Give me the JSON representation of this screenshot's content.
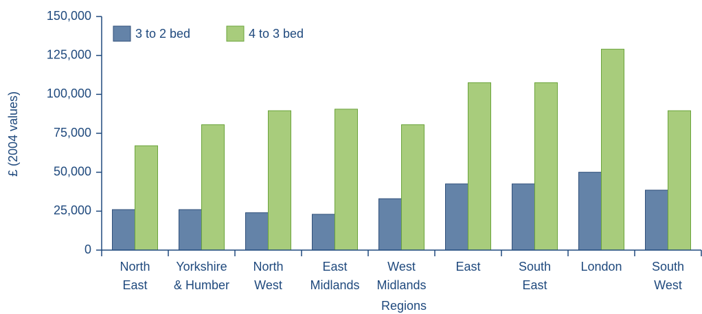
{
  "chart_data": {
    "type": "bar",
    "categories": [
      "North\nEast",
      "Yorkshire\n& Humber",
      "North\nWest",
      "East\nMidlands",
      "West\nMidlands",
      "East",
      "South\nEast",
      "London",
      "South\nWest"
    ],
    "series": [
      {
        "name": "3 to 2 bed",
        "color": "#6483a8",
        "values": [
          26000,
          26000,
          24000,
          23000,
          33000,
          42500,
          42500,
          50000,
          38500
        ]
      },
      {
        "name": "4 to 3 bed",
        "color": "#a8cc7c",
        "values": [
          67000,
          80500,
          89500,
          90500,
          80500,
          107500,
          107500,
          129000,
          89500
        ]
      }
    ],
    "ylim": [
      0,
      150000
    ],
    "yticks": [
      0,
      {
        "value": 25000,
        "label": "25,000"
      },
      {
        "value": 50000,
        "label": "50,000"
      },
      {
        "value": 75000,
        "label": "75,000"
      },
      {
        "value": 100000,
        "label": "100,000"
      },
      {
        "value": 125000,
        "label": "125,000"
      },
      {
        "value": 150000,
        "label": "150,000"
      }
    ],
    "xlabel": "Regions",
    "ylabel": "£ (2004 values)",
    "legend": "top-left"
  }
}
